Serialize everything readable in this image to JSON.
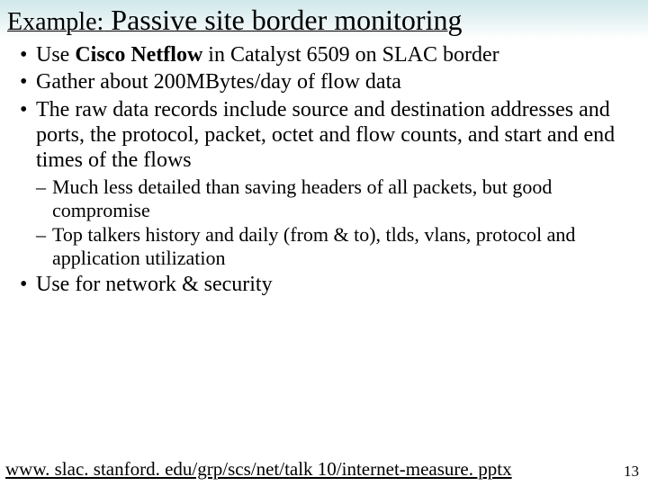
{
  "title": {
    "prefix": "Example:",
    "main": " Passive site border monitoring",
    "background_gradient": [
      "#cfe8ea",
      "#e8f3f4",
      "#ffffff"
    ]
  },
  "bullets": [
    {
      "segments": [
        {
          "text": "Use ",
          "bold": false
        },
        {
          "text": "Cisco Netflow",
          "bold": true
        },
        {
          "text": " in Catalyst 6509 on SLAC border",
          "bold": false
        }
      ]
    },
    {
      "segments": [
        {
          "text": "Gather about 200MBytes/day of flow data",
          "bold": false
        }
      ]
    },
    {
      "segments": [
        {
          "text": "The raw data records include source and destination addresses and ports, the protocol, packet, octet and flow counts, and start and end times of the flows",
          "bold": false
        }
      ],
      "sub": [
        "Much less detailed than saving headers of all packets, but good compromise",
        "Top talkers history and daily (from & to), tlds, vlans, protocol and application utilization"
      ]
    },
    {
      "segments": [
        {
          "text": "Use for network & security",
          "bold": false
        }
      ]
    }
  ],
  "footer": {
    "url": "www. slac. stanford. edu/grp/scs/net/talk 10/internet-measure. pptx",
    "page": "13"
  },
  "style": {
    "body_fontsize": 24,
    "sub_fontsize": 22,
    "title_prefix_fontsize": 28,
    "title_main_fontsize": 32,
    "footer_fontsize": 21,
    "pagenum_fontsize": 17,
    "text_color": "#000000",
    "background_color": "#ffffff"
  }
}
